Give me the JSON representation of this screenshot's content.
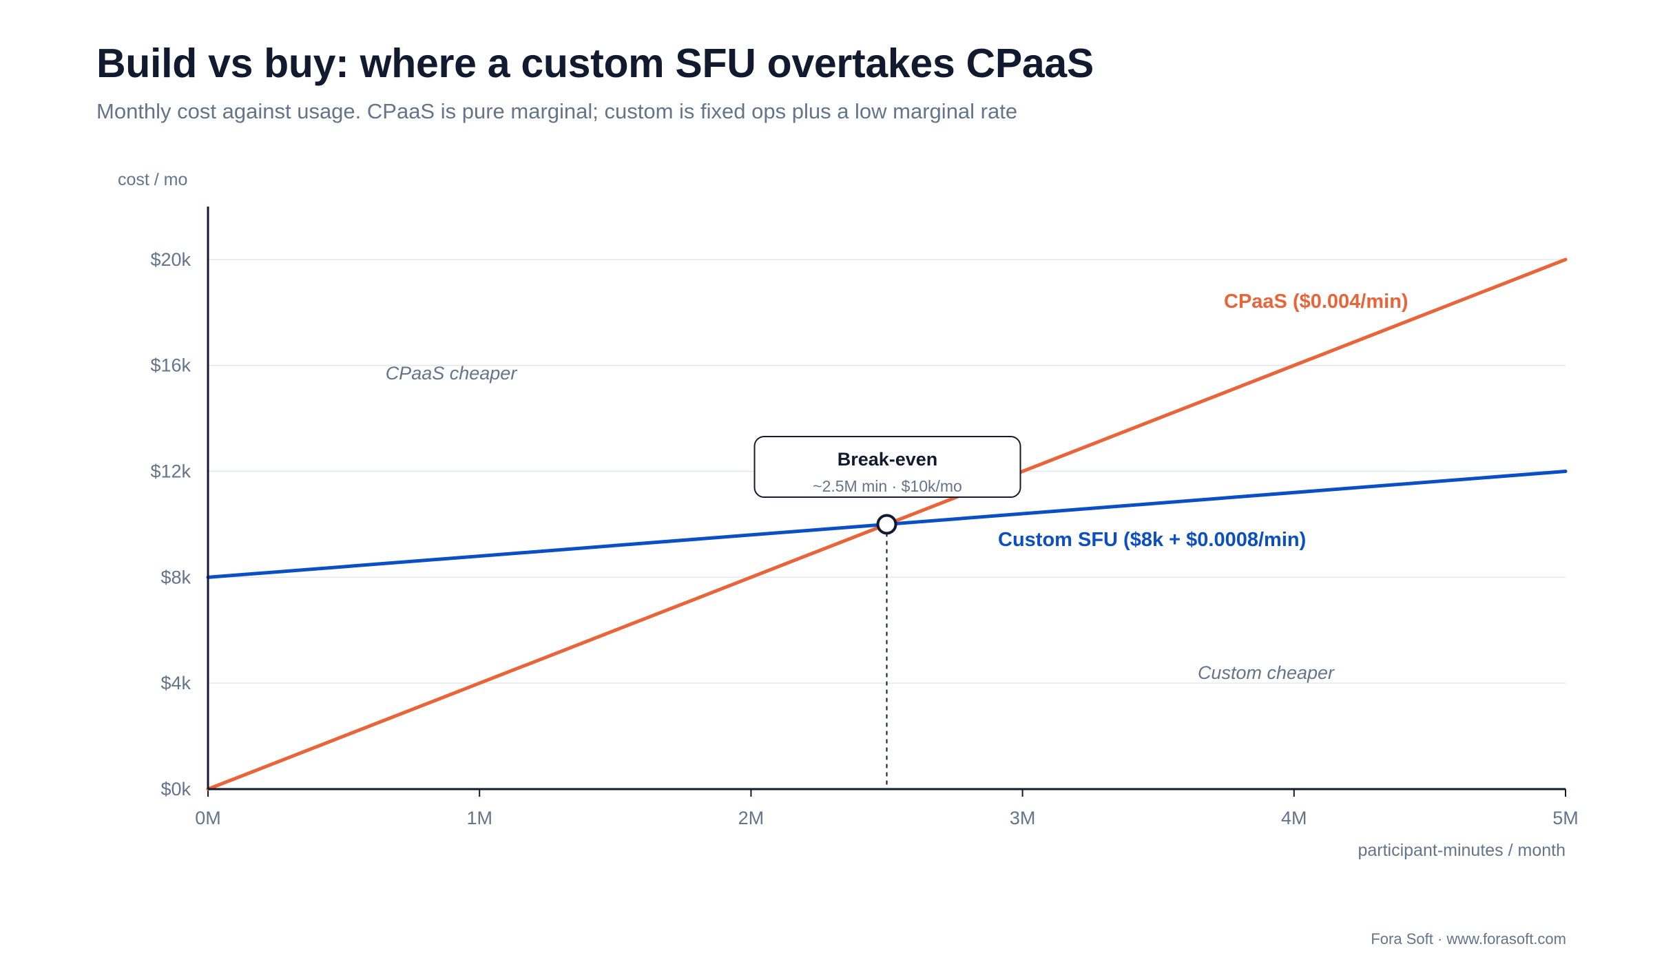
{
  "header": {
    "title": "Build vs buy: where a custom SFU overtakes CPaaS",
    "subtitle": "Monthly cost against usage. CPaaS is pure marginal; custom is fixed ops plus a low marginal rate"
  },
  "footer": {
    "credit": "Fora Soft · www.forasoft.com"
  },
  "colors": {
    "cpaas": "#e8653a",
    "custom": "#0b4fc4",
    "axis": "#111a2e",
    "grid": "#e5e7eb",
    "muted": "#64748b"
  },
  "chart_data": {
    "type": "line",
    "title": "Build vs buy: where a custom SFU overtakes CPaaS",
    "subtitle": "Monthly cost against usage. CPaaS is pure marginal; custom is fixed ops plus a low marginal rate",
    "xlabel": "participant-minutes / month",
    "ylabel": "cost / mo",
    "xlim": [
      0,
      5
    ],
    "ylim": [
      0,
      22
    ],
    "x_unit": "M participant-minutes",
    "y_unit": "$k",
    "x_ticks": [
      0,
      1,
      2,
      3,
      4,
      5
    ],
    "x_tick_labels": [
      "0M",
      "1M",
      "2M",
      "3M",
      "4M",
      "5M"
    ],
    "y_ticks": [
      0,
      4,
      8,
      12,
      16,
      20
    ],
    "y_tick_labels": [
      "$0k",
      "$4k",
      "$8k",
      "$12k",
      "$16k",
      "$20k"
    ],
    "grid": true,
    "series": [
      {
        "name": "CPaaS ($0.004/min)",
        "color": "#e8653a",
        "x": [
          0,
          5
        ],
        "y": [
          0,
          20
        ]
      },
      {
        "name": "Custom SFU ($8k + $0.0008/min)",
        "color": "#0b4fc4",
        "x": [
          0,
          5
        ],
        "y": [
          8,
          12
        ]
      }
    ],
    "annotations": {
      "break_even": {
        "title": "Break-even",
        "detail": "~2.5M min · $10k/mo",
        "x": 2.5,
        "y": 10
      },
      "regions": [
        {
          "text": "CPaaS cheaper",
          "x": 0.9,
          "y": 15.7
        },
        {
          "text": "Custom cheaper",
          "x": 3.9,
          "y": 4.4
        }
      ]
    }
  }
}
